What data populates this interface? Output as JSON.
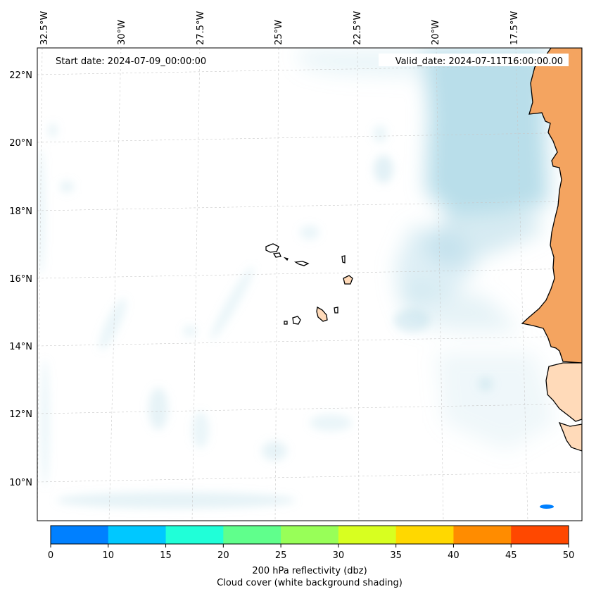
{
  "map": {
    "start_label": "Start date: 2024-07-09_00:00:00",
    "valid_label": "Valid_date: 2024-07-11T16:00:00.00",
    "lon_labels": [
      "32.5°W",
      "30°W",
      "27.5°W",
      "25°W",
      "22.5°W",
      "20°W",
      "17.5°W"
    ],
    "lat_labels": [
      "22°N",
      "20°N",
      "18°N",
      "16°N",
      "14°N",
      "12°N",
      "10°N"
    ],
    "colors": {
      "cloud": "#add8e6",
      "land_warm": "#f4a460",
      "land_light": "#ffdab9",
      "coast": "#000000",
      "grid": "#c8c8c8",
      "echo": "#0080ff"
    }
  },
  "colorbar": {
    "ticks": [
      "0",
      "10",
      "15",
      "20",
      "25",
      "30",
      "35",
      "40",
      "45",
      "50"
    ],
    "colors": [
      "#0080ff",
      "#00c8ff",
      "#20ffd8",
      "#60ff8c",
      "#98ff58",
      "#d8ff20",
      "#ffd800",
      "#ff8c00",
      "#ff4800"
    ],
    "label_line1": "200 hPa reflectivity (dbz)",
    "label_line2": "Cloud cover (white background shading)"
  }
}
